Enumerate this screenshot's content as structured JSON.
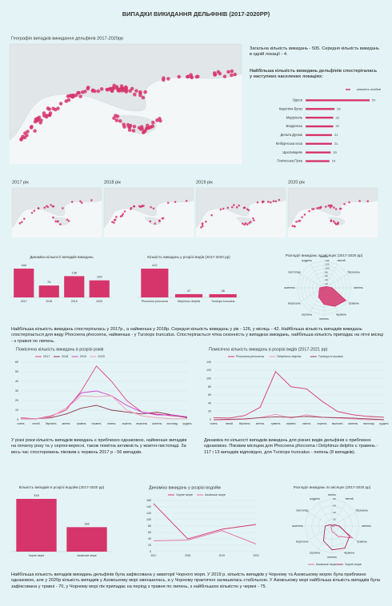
{
  "title": "ВИПАДКИ ВИКИДАННЯ ДЕЛЬФІНІВ (2017-2020РР)",
  "map_title": "Географія випадків викидання дельфінів 2017-2020рр",
  "summary": "Загальна кількість викидань - 505. Середня кількість викидань в одній локації - 4.",
  "top_places_caption": "Найбільша кількість викидань дельфінів спостерігалась у наступних населених локаціях:",
  "year_labels": [
    "2017 рік",
    "2018 рік",
    "2019 рік",
    "2020 рік"
  ],
  "paragraphs": [
    "Найбільша кількість викидань спостерігалась у 2017р., а найменша у 2018р. Середня кількість викидань у рік - 126, у місяць - 42. Найбільша кількість випадків викидань спостерігається для виду Phocoena phocoena, найменша - у Tursiops truncatus. Спостерігається чітка сезонність у випадках викидань, найбільша кількість припадає на літні місяці - з травня по липень.",
    "У різні роки кількість випадків викидань є приблизно однаковою, найменше випадків на початку року та у серпні-вересні, також помітна активність у жовтні-листопаді. За весь час спостережень піковим є червень 2017 р - 56 випадків.",
    "Динаміка по кількості випадків викидань для різних видів дельфінів є приблизно однаковою. Піковим місяцем для Phocoena phocoena і Delphinus delphis є травень - 117 і 13 випадків відповідно, для Tursiops truncatus - липень (8 випадків).",
    "Найбільша кількість випадків викидань дельфінів була зафіксована у акваторії Чорного моря. У 2019 р. кількість випадків у Чорному та Азовському морях була приблизно однаковою, але у 2020р кількість випадків у Азовському морі зменшилась, а у Чорному практично залишилась стабільною. У Азовському морі найбільша кількість випадків була зафіксована у травні - 70, у Чорному морі пік припадає на період з травня по липень, з найбільшою кількістю у червні - 75."
  ],
  "chart_data": [
    {
      "type": "hbar",
      "categories": [
        "Одеса",
        "Кароліно-Бугаз",
        "Маріуполь",
        "Бердянськ",
        "Дельта Дунаю",
        "Кінбурнська коса",
        "Щасливцеве",
        "Генічеська Гірка"
      ],
      "series": [
        {
          "name": "кількість особин",
          "color": "#d6356b",
          "values": [
            51,
            23,
            22,
            22,
            21,
            21,
            20,
            19
          ]
        }
      ]
    },
    {
      "type": "bar",
      "title": "Динаміка кількості випадків викидань",
      "categories": [
        "2017",
        "2018",
        "2019",
        "2020"
      ],
      "values": [
        184,
        76,
        136,
        109
      ],
      "color": "#d6356b"
    },
    {
      "type": "bar",
      "title": "Кількість викидань у розрізі видів (2017-2020 рр)",
      "categories": [
        "Phocoena phocoena",
        "Delphinus delphis",
        "Tursiops truncatus"
      ],
      "values": [
        412,
        47,
        46
      ],
      "color": "#d6356b"
    },
    {
      "type": "radar",
      "title": "Розподіл викидань по місяцях (2017-2020 рр)",
      "categories": [
        "січень",
        "лютий",
        "березень",
        "квітень",
        "травень",
        "червень",
        "липень",
        "серпень",
        "вересень",
        "жовтень",
        "листопад",
        "грудень"
      ],
      "values": [
        5,
        4,
        14,
        42,
        130,
        110,
        85,
        55,
        28,
        22,
        7,
        3
      ],
      "color": "#d6356b",
      "rlim": [
        0,
        140
      ],
      "rticks": [
        0,
        20,
        40,
        60,
        80,
        100,
        120,
        140
      ]
    },
    {
      "type": "line",
      "title": "Помісячна кількість викидань в розрізі років",
      "categories": [
        "січень",
        "лютий",
        "березень",
        "квітень",
        "травень",
        "червень",
        "липень",
        "серпень",
        "вересень",
        "жовтень",
        "листопад",
        "грудень"
      ],
      "series": [
        {
          "name": "2017",
          "color": "#e0407a",
          "values": [
            2,
            1,
            4,
            10,
            30,
            56,
            40,
            20,
            8,
            6,
            4,
            3
          ]
        },
        {
          "name": "2018",
          "color": "#8e3547",
          "values": [
            1,
            1,
            2,
            6,
            12,
            15,
            10,
            8,
            6,
            8,
            5,
            2
          ]
        },
        {
          "name": "2019",
          "color": "#d03fd0",
          "values": [
            1,
            1,
            3,
            12,
            28,
            30,
            25,
            15,
            8,
            5,
            5,
            3
          ]
        },
        {
          "name": "2020",
          "color": "#f29ab0",
          "values": [
            1,
            1,
            3,
            12,
            25,
            24,
            25,
            10,
            4,
            2,
            1,
            1
          ]
        }
      ],
      "ylim": [
        0,
        60
      ],
      "yticks": [
        0,
        10,
        20,
        30,
        40,
        50,
        60
      ],
      "grid": true
    },
    {
      "type": "line",
      "title": "Помісячна кількість викидань в розрізі видів (2017-2021 рр)",
      "categories": [
        "січень",
        "лютий",
        "березень",
        "квітень",
        "травень",
        "червень",
        "липень",
        "серпень",
        "вересень",
        "жовтень",
        "листопад",
        "грудень"
      ],
      "series": [
        {
          "name": "Phocoena phocoena",
          "color": "#d6356b",
          "values": [
            5,
            4,
            10,
            30,
            117,
            80,
            75,
            45,
            20,
            12,
            8,
            6
          ]
        },
        {
          "name": "Delphinus delphis",
          "color": "#f28bb0",
          "values": [
            0,
            0,
            1,
            5,
            13,
            4,
            12,
            6,
            4,
            2,
            0,
            0
          ]
        },
        {
          "name": "Tursiops truncatus",
          "color": "#9a3b55",
          "values": [
            0,
            1,
            2,
            5,
            7,
            6,
            8,
            6,
            5,
            4,
            2,
            0
          ]
        }
      ],
      "ylim": [
        0,
        140
      ],
      "yticks": [
        0,
        20,
        40,
        60,
        80,
        100,
        120,
        140
      ],
      "grid": true
    },
    {
      "type": "bar",
      "title": "Кількість випадків в розрізі водойм (2017-2020 рр)",
      "categories": [
        "Чорне море",
        "Азовське море"
      ],
      "values": [
        345,
        160
      ],
      "color": "#d6356b"
    },
    {
      "type": "line",
      "title": "Динаміка викидань у розрізі водойм",
      "categories": [
        "2017",
        "2018",
        "2019",
        "2020"
      ],
      "series": [
        {
          "name": "Чорне море",
          "color": "#d6356b",
          "values": [
            150,
            40,
            70,
            85
          ]
        },
        {
          "name": "Азовське море",
          "color": "#e06aa0",
          "values": [
            34,
            36,
            66,
            24
          ]
        }
      ],
      "ylim": [
        0,
        160
      ],
      "yticks": [
        0,
        20,
        40,
        60,
        80,
        100,
        120,
        140,
        160
      ],
      "grid": true
    },
    {
      "type": "radar",
      "title": "Розподіл викидань по місяцях (2017-2020 рр)",
      "categories": [
        "січень",
        "лютий",
        "березень",
        "квітень",
        "травень",
        "червень",
        "липень",
        "серпень",
        "вересень",
        "жовтень",
        "листопад",
        "грудень"
      ],
      "series": [
        {
          "name": "Азовське море",
          "color": "#e06aa0",
          "values": [
            2,
            2,
            6,
            20,
            70,
            35,
            15,
            5,
            3,
            2,
            0,
            0
          ]
        },
        {
          "name": "Чорне море",
          "color": "#b0284f",
          "values": [
            3,
            2,
            8,
            22,
            60,
            75,
            70,
            50,
            25,
            20,
            7,
            3
          ]
        }
      ],
      "rlim": [
        0,
        80
      ],
      "rticks": [
        0,
        20,
        40,
        60,
        80
      ]
    }
  ]
}
